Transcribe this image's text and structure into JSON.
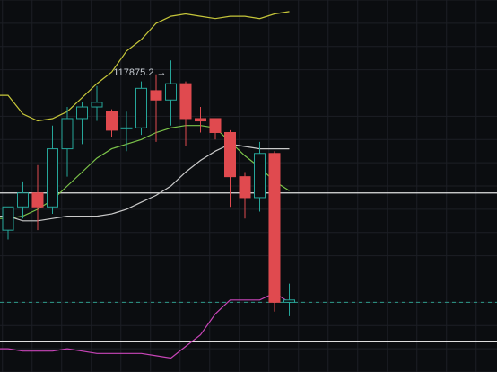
{
  "chart_data": {
    "type": "candlestick",
    "title": "",
    "xlabel": "",
    "ylabel": "",
    "grid": true,
    "ylim": [
      112000,
      120000
    ],
    "colors": {
      "background": "#0b0d10",
      "grid": "#1c1f25",
      "up": "#26a69a",
      "down": "#e04a4f",
      "upper_band": "#c6c63a",
      "middle_band": "#7cc44a",
      "moving_average": "#c9c9c9",
      "lower_band": "#c845b8",
      "horizontal_line": "#e0e0e0",
      "price_line": "#2e9a8a",
      "annotation": "#c8cdd3"
    },
    "candles": [
      {
        "o": 115050,
        "h": 115500,
        "l": 114850,
        "c": 115550
      },
      {
        "o": 115550,
        "h": 116100,
        "l": 115300,
        "c": 115850
      },
      {
        "o": 115850,
        "h": 116450,
        "l": 115050,
        "c": 115550
      },
      {
        "o": 115550,
        "h": 117300,
        "l": 115400,
        "c": 116800
      },
      {
        "o": 116800,
        "h": 117700,
        "l": 116200,
        "c": 117450
      },
      {
        "o": 117450,
        "h": 117800,
        "l": 116900,
        "c": 117700
      },
      {
        "o": 117700,
        "h": 118150,
        "l": 117400,
        "c": 117800
      },
      {
        "o": 117600,
        "h": 117650,
        "l": 117050,
        "c": 117200
      },
      {
        "o": 117250,
        "h": 117600,
        "l": 116750,
        "c": 117250
      },
      {
        "o": 117250,
        "h": 118250,
        "l": 117100,
        "c": 118100
      },
      {
        "o": 118050,
        "h": 118400,
        "l": 116950,
        "c": 117850
      },
      {
        "o": 117850,
        "h": 118700,
        "l": 117300,
        "c": 118200
      },
      {
        "o": 118200,
        "h": 118250,
        "l": 116850,
        "c": 117450
      },
      {
        "o": 117450,
        "h": 117700,
        "l": 117150,
        "c": 117400
      },
      {
        "o": 117450,
        "h": 117450,
        "l": 117000,
        "c": 117150
      },
      {
        "o": 117150,
        "h": 117200,
        "l": 115550,
        "c": 116200
      },
      {
        "o": 116200,
        "h": 116300,
        "l": 115300,
        "c": 115750
      },
      {
        "o": 115750,
        "h": 116950,
        "l": 115450,
        "c": 116700
      },
      {
        "o": 116700,
        "h": 116750,
        "l": 113300,
        "c": 113500
      },
      {
        "o": 113500,
        "h": 113900,
        "l": 113200,
        "c": 113550
      }
    ],
    "series": [
      {
        "values": [
          117950,
          117550,
          117400,
          117450,
          117600,
          117900,
          118200,
          118450,
          118900,
          119150,
          119500,
          119650,
          119700,
          119650,
          119600,
          119650,
          119650,
          119600,
          119700,
          119750
        ]
      },
      {
        "values": [
          115300,
          115350,
          115500,
          115700,
          116000,
          116300,
          116600,
          116800,
          116900,
          117000,
          117150,
          117250,
          117300,
          117300,
          117250,
          116950,
          116650,
          116400,
          116100,
          115900
        ]
      },
      {
        "values": [
          115350,
          115250,
          115250,
          115300,
          115350,
          115350,
          115350,
          115400,
          115500,
          115650,
          115800,
          116000,
          116300,
          116550,
          116750,
          116900,
          116850,
          116800,
          116800,
          116800
        ]
      },
      {
        "values": [
          112500,
          112450,
          112450,
          112450,
          112500,
          112450,
          112400,
          112400,
          112400,
          112400,
          112350,
          112300,
          112550,
          112800,
          113250,
          113550,
          113550,
          113550,
          113700,
          113500
        ]
      }
    ],
    "horizontal_lines": [
      115850,
      112650
    ],
    "current_price": 113500,
    "annotations": [
      {
        "text": "117875.2 →",
        "x_index": 11,
        "y": 118450
      }
    ]
  }
}
